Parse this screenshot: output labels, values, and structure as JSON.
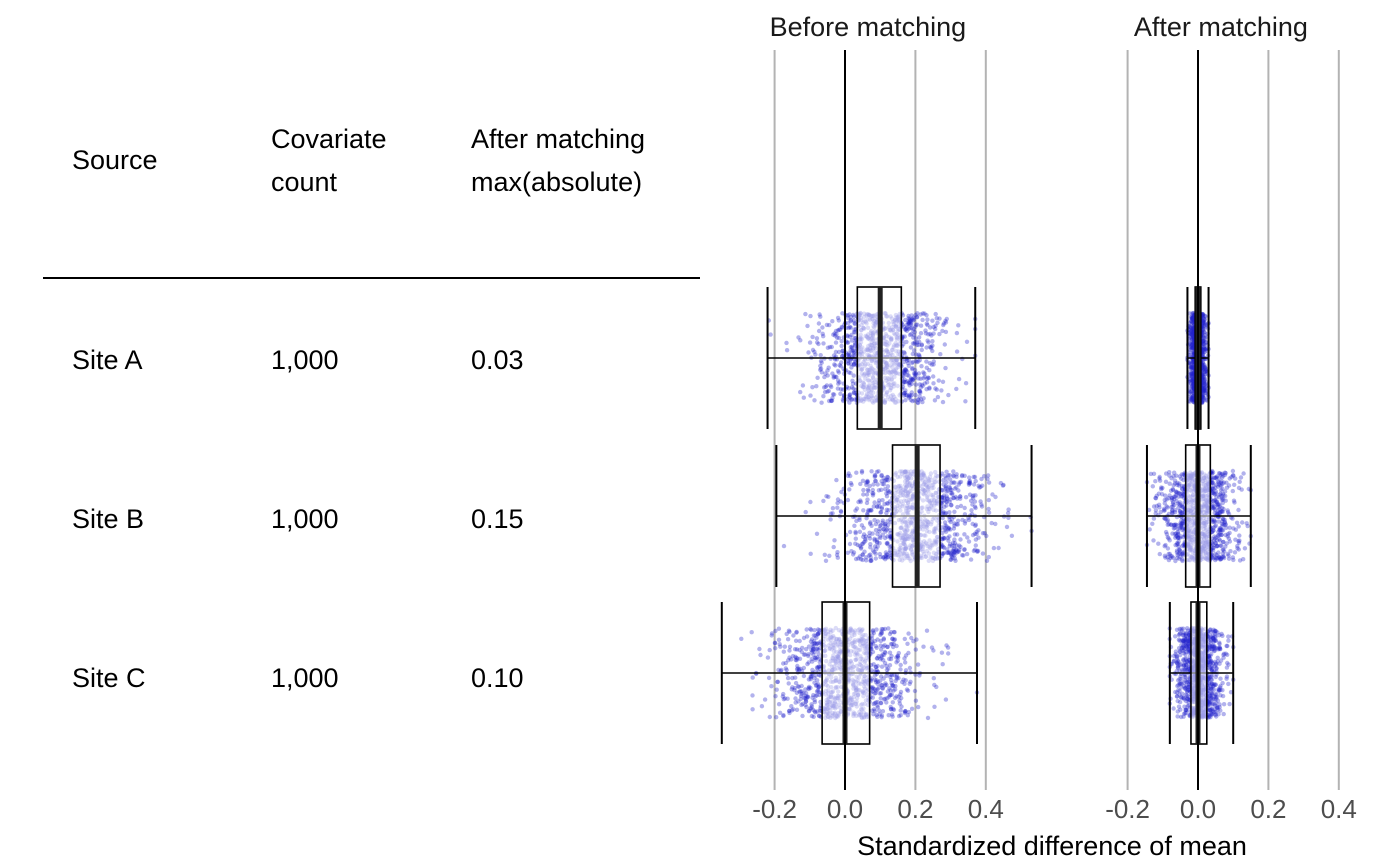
{
  "table": {
    "headers": [
      {
        "key": "source",
        "text": "Source"
      },
      {
        "key": "count",
        "line1": "Covariate",
        "line2": "count"
      },
      {
        "key": "max_abs",
        "line1": "After matching",
        "line2": "max(absolute)"
      }
    ],
    "rows": [
      {
        "source": "Site A",
        "count": "1,000",
        "max_abs": "0.03"
      },
      {
        "source": "Site B",
        "count": "1,000",
        "max_abs": "0.15"
      },
      {
        "source": "Site C",
        "count": "1,000",
        "max_abs": "0.10"
      }
    ]
  },
  "chart_data": {
    "type": "box",
    "xlabel": "Standardized difference of mean",
    "xlim": [
      -0.32,
      0.45
    ],
    "ticks": [
      -0.2,
      0.0,
      0.2,
      0.4
    ],
    "tick_labels": [
      "-0.2",
      "0.0",
      "0.2",
      "0.4"
    ],
    "grid": true,
    "reference_line": 0,
    "point_color": "#2222cc",
    "panels": [
      {
        "title": "Before matching",
        "groups": [
          {
            "name": "Site A",
            "min": -0.22,
            "q1": 0.035,
            "median": 0.1,
            "q3": 0.16,
            "max": 0.37,
            "n": 1000
          },
          {
            "name": "Site B",
            "min": -0.195,
            "q1": 0.135,
            "median": 0.205,
            "q3": 0.27,
            "max": 0.53,
            "n": 1000
          },
          {
            "name": "Site C",
            "min": -0.35,
            "q1": -0.065,
            "median": 0.0,
            "q3": 0.07,
            "max": 0.375,
            "n": 1000
          }
        ]
      },
      {
        "title": "After matching",
        "groups": [
          {
            "name": "Site A",
            "min": -0.03,
            "q1": -0.008,
            "median": 0.0,
            "q3": 0.008,
            "max": 0.03,
            "n": 1000
          },
          {
            "name": "Site B",
            "min": -0.145,
            "q1": -0.035,
            "median": 0.0,
            "q3": 0.035,
            "max": 0.15,
            "n": 1000
          },
          {
            "name": "Site C",
            "min": -0.08,
            "q1": -0.02,
            "median": 0.0,
            "q3": 0.025,
            "max": 0.1,
            "n": 1000
          }
        ]
      }
    ]
  }
}
